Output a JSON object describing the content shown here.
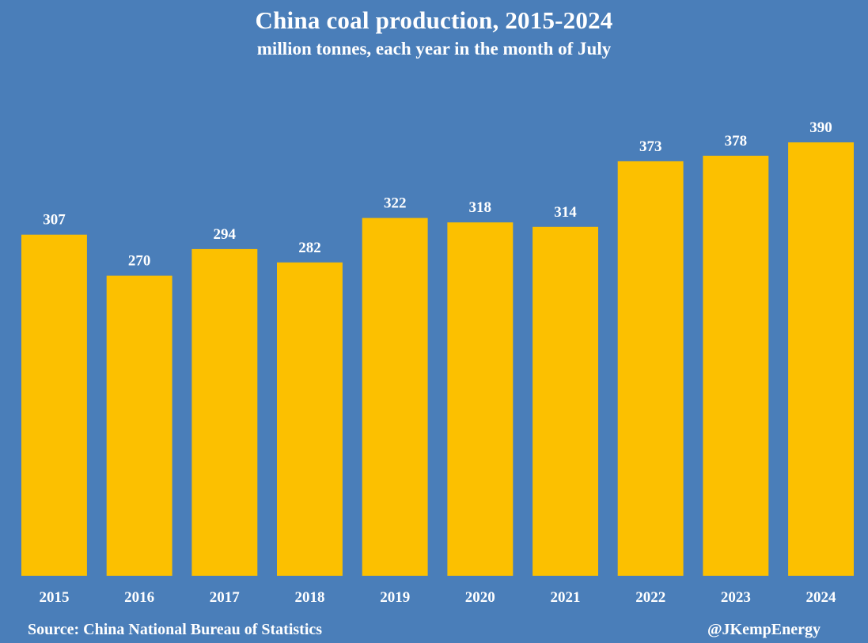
{
  "colors": {
    "background": "#4a7eb9",
    "bar": "#fcc000",
    "text": "#ffffff"
  },
  "chart_data": {
    "type": "bar",
    "title": "China coal production, 2015-2024",
    "subtitle": "million tonnes, each year in the month of  July",
    "categories": [
      "2015",
      "2016",
      "2017",
      "2018",
      "2019",
      "2020",
      "2021",
      "2022",
      "2023",
      "2024"
    ],
    "values": [
      307,
      270,
      294,
      282,
      322,
      318,
      314,
      373,
      378,
      390
    ],
    "xlabel": "",
    "ylabel": "",
    "ylim": [
      0,
      400
    ],
    "grid": false,
    "legend": "none",
    "data_labels": true
  },
  "footer": {
    "source": "Source: China National Bureau of Statistics",
    "credit": "@JKempEnergy"
  }
}
